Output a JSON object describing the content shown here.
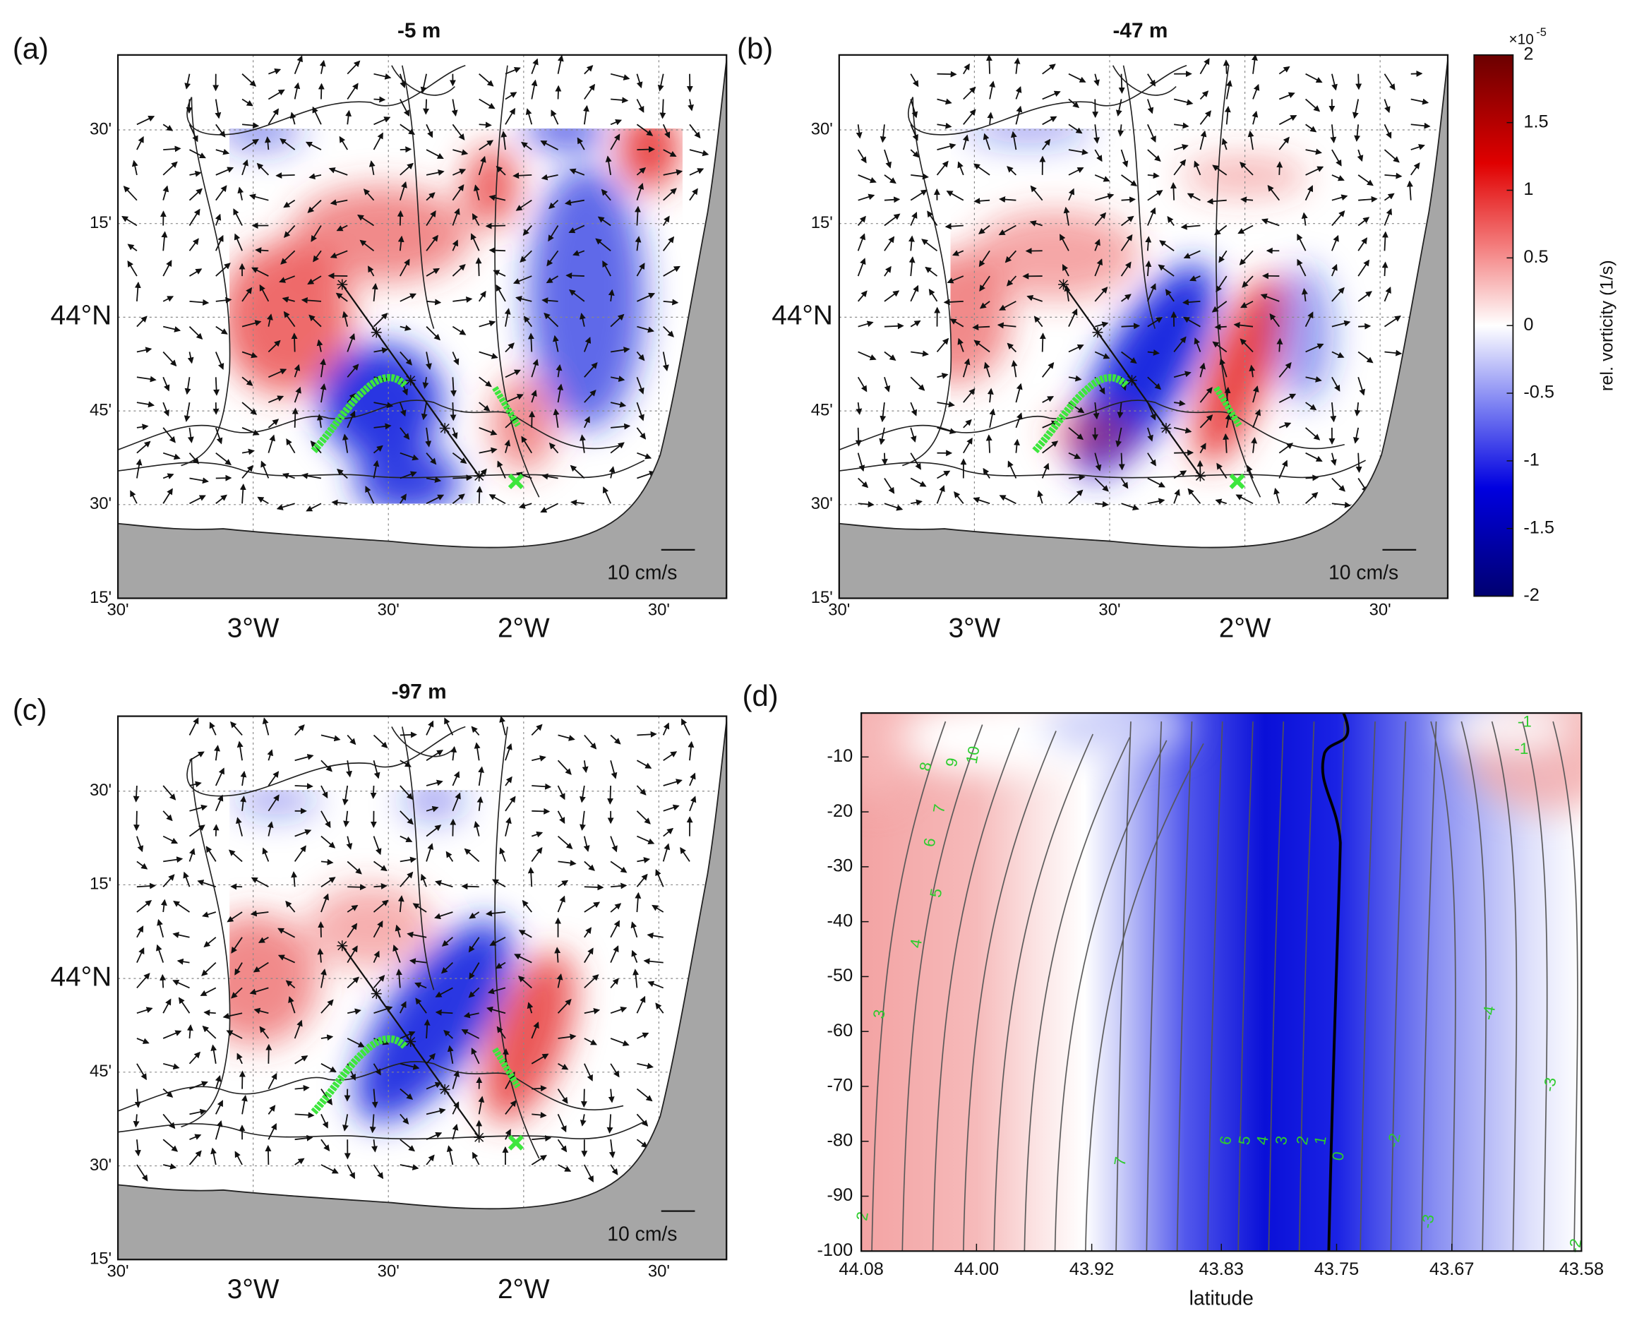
{
  "figure": {
    "panels": [
      {
        "label": "(a)",
        "title": "-5 m",
        "scale_label": "10 cm/s"
      },
      {
        "label": "(b)",
        "title": "-47 m",
        "scale_label": "10 cm/s"
      },
      {
        "label": "(c)",
        "title": "-97 m",
        "scale_label": "10 cm/s"
      }
    ],
    "map_xlim": [
      -3.5,
      -1.25
    ],
    "map_ylim": [
      43.25,
      44.7
    ],
    "map_xticks": [
      {
        "value": -3.5,
        "label": "30'"
      },
      {
        "value": -3,
        "label": "3°W"
      },
      {
        "value": -2.5,
        "label": "30'"
      },
      {
        "value": -2,
        "label": "2°W"
      },
      {
        "value": -1.5,
        "label": "30'"
      }
    ],
    "map_yticks": [
      {
        "value": 43.25,
        "label": "15'"
      },
      {
        "value": 43.5,
        "label": "30'"
      },
      {
        "value": 43.75,
        "label": "45'"
      },
      {
        "value": 44,
        "label": "44°N"
      },
      {
        "value": 44.25,
        "label": "15'"
      },
      {
        "value": 44.5,
        "label": "30'"
      }
    ],
    "colorbar": {
      "label": "rel. vorticity (1/s)",
      "multiplier": "×10",
      "exponent": -5,
      "lim": [
        -2,
        2
      ],
      "ticks": [
        -2,
        -1.5,
        -1,
        -0.5,
        0,
        0.5,
        1,
        1.5,
        2
      ]
    },
    "section": {
      "label": "(d)",
      "xlabel": "latitude",
      "xlim": [
        44.08,
        43.58
      ],
      "xticks": [
        44.08,
        {
          "value": 44,
          "label": "44.00"
        },
        43.92,
        43.83,
        43.75,
        43.67,
        43.58
      ],
      "ylim": [
        -100,
        -2
      ],
      "yticks": [
        -10,
        -20,
        -30,
        -40,
        -50,
        -60,
        -70,
        -80,
        -90,
        -100
      ],
      "contour_labels": [
        10,
        9,
        8,
        7,
        6,
        5,
        4,
        3,
        2,
        7,
        6,
        5,
        4,
        3,
        2,
        1,
        0,
        -2,
        -3,
        -4,
        -3,
        -1,
        -1,
        -2
      ]
    }
  }
}
